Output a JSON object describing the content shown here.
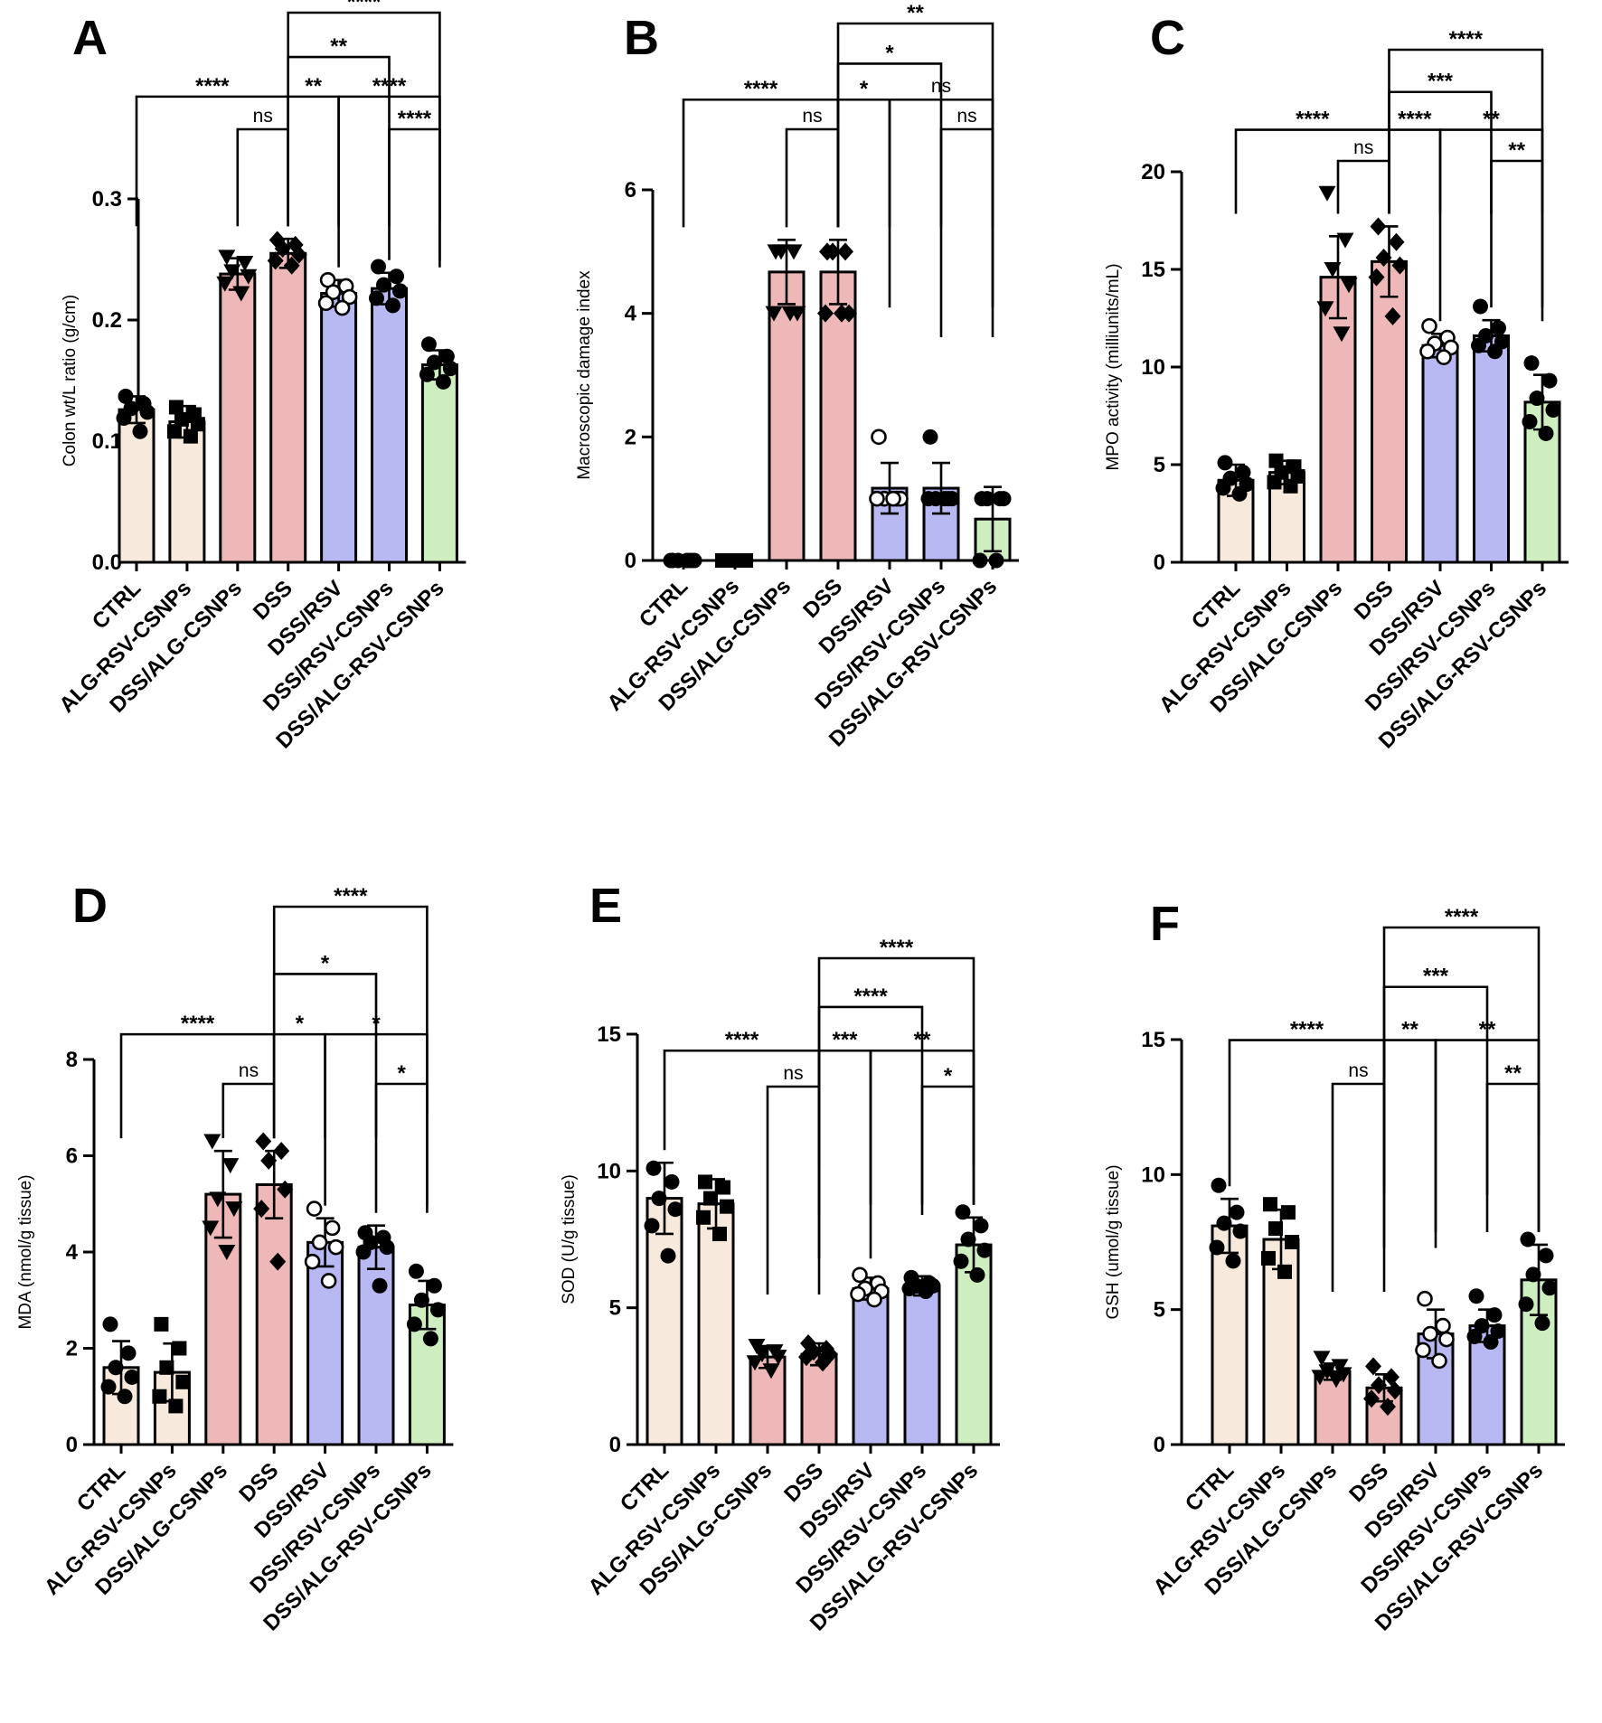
{
  "figure": {
    "layout": "2x3 grid of bar charts"
  },
  "colors": {
    "control": "#f7eadc",
    "dss": "#eeb8b8",
    "rsv": "#b8b8f2",
    "treatment": "#ceeec0",
    "stroke": "#000000"
  },
  "chart_data": [
    {
      "panel": "A",
      "type": "bar",
      "categories": [
        "CTRL",
        "ALG-RSV-CSNPs",
        "DSS/ALG-CSNPs",
        "DSS",
        "DSS/RSV",
        "DSS/RSV-CSNPs",
        "DSS/ALG-RSV-CSNPs"
      ],
      "values": [
        0.126,
        0.116,
        0.238,
        0.255,
        0.222,
        0.226,
        0.163
      ],
      "errors": [
        0.011,
        0.013,
        0.013,
        0.012,
        0.011,
        0.013,
        0.012
      ],
      "points": [
        [
          0.137,
          0.131,
          0.127,
          0.124,
          0.119,
          0.108
        ],
        [
          0.128,
          0.122,
          0.118,
          0.114,
          0.108,
          0.104
        ],
        [
          0.252,
          0.247,
          0.24,
          0.236,
          0.23,
          0.222
        ],
        [
          0.266,
          0.262,
          0.259,
          0.254,
          0.249,
          0.245
        ],
        [
          0.233,
          0.228,
          0.223,
          0.219,
          0.214,
          0.21
        ],
        [
          0.244,
          0.236,
          0.229,
          0.224,
          0.218,
          0.212
        ],
        [
          0.18,
          0.17,
          0.165,
          0.16,
          0.155,
          0.149
        ]
      ],
      "markers": [
        "circle",
        "square",
        "triangle-down",
        "diamond",
        "circle-open",
        "circle",
        "circle"
      ],
      "ylabel": "Colon wt/L ratio (g/cm)",
      "ylim": [
        0,
        0.3
      ],
      "yticks": [
        0,
        0.1,
        0.2,
        0.3
      ],
      "ytick_labels": [
        "0.0",
        "0.1",
        "0.2",
        "0.3"
      ],
      "comparisons": [
        {
          "from": 0,
          "to": 3,
          "label": "****"
        },
        {
          "from": 2,
          "to": 3,
          "label": "ns"
        },
        {
          "from": 3,
          "to": 4,
          "label": "**"
        },
        {
          "from": 3,
          "to": 5,
          "label": "**"
        },
        {
          "from": 3,
          "to": 6,
          "label": "****"
        },
        {
          "from": 4,
          "to": 6,
          "label": "****"
        },
        {
          "from": 5,
          "to": 6,
          "label": "****"
        }
      ]
    },
    {
      "panel": "B",
      "type": "bar",
      "categories": [
        "CTRL",
        "ALG-RSV-CSNPs",
        "DSS/ALG-CSNPs",
        "DSS",
        "DSS/RSV",
        "DSS/RSV-CSNPs",
        "DSS/ALG-RSV-CSNPs"
      ],
      "values": [
        0,
        0,
        4.67,
        4.67,
        1.17,
        1.17,
        0.67
      ],
      "errors": [
        0,
        0,
        0.52,
        0.52,
        0.41,
        0.41,
        0.52
      ],
      "points": [
        [
          0,
          0,
          0,
          0,
          0,
          0
        ],
        [
          0,
          0,
          0,
          0,
          0,
          0
        ],
        [
          5,
          5,
          5,
          4,
          4,
          4
        ],
        [
          5,
          5,
          5,
          4,
          4,
          4
        ],
        [
          2,
          1,
          1,
          1,
          1,
          1
        ],
        [
          2,
          1,
          1,
          1,
          1,
          1
        ],
        [
          1,
          1,
          1,
          1,
          0,
          0
        ]
      ],
      "markers": [
        "circle",
        "square",
        "triangle-down",
        "diamond",
        "circle-open",
        "circle",
        "circle"
      ],
      "ylabel": "Macroscopic damage index",
      "ylim": [
        0,
        6
      ],
      "yticks": [
        0,
        2,
        4,
        6
      ],
      "ytick_labels": [
        "0",
        "2",
        "4",
        "6"
      ],
      "comparisons": [
        {
          "from": 0,
          "to": 3,
          "label": "****"
        },
        {
          "from": 2,
          "to": 3,
          "label": "ns"
        },
        {
          "from": 3,
          "to": 4,
          "label": "*"
        },
        {
          "from": 3,
          "to": 5,
          "label": "*"
        },
        {
          "from": 3,
          "to": 6,
          "label": "**"
        },
        {
          "from": 4,
          "to": 6,
          "label": "ns"
        },
        {
          "from": 5,
          "to": 6,
          "label": "ns"
        }
      ]
    },
    {
      "panel": "C",
      "type": "bar",
      "categories": [
        "CTRL",
        "ALG-RSV-CSNPs",
        "DSS/ALG-CSNPs",
        "DSS",
        "DSS/RSV",
        "DSS/RSV-CSNPs",
        "DSS/ALG-RSV-CSNPs"
      ],
      "values": [
        4.2,
        4.6,
        14.6,
        15.4,
        11.1,
        11.6,
        8.2
      ],
      "errors": [
        0.8,
        0.6,
        2.1,
        1.8,
        0.6,
        0.8,
        1.4
      ],
      "points": [
        [
          5.1,
          4.6,
          4.3,
          4.0,
          3.8,
          3.5
        ],
        [
          5.2,
          4.9,
          4.6,
          4.4,
          4.1,
          3.9
        ],
        [
          18.9,
          16.5,
          15.0,
          14.2,
          13.0,
          11.7
        ],
        [
          17.2,
          16.4,
          15.6,
          15.2,
          14.6,
          12.6
        ],
        [
          12.1,
          11.5,
          11.2,
          11.0,
          10.8,
          10.5
        ],
        [
          13.1,
          12.0,
          11.6,
          11.3,
          11.1,
          10.8
        ],
        [
          10.2,
          9.3,
          8.4,
          7.8,
          7.2,
          6.6
        ]
      ],
      "markers": [
        "circle",
        "square",
        "triangle-down",
        "diamond",
        "circle-open",
        "circle",
        "circle"
      ],
      "ylabel": "MPO activity (milliunits/mL)",
      "ylim": [
        0,
        20
      ],
      "yticks": [
        0,
        5,
        10,
        15,
        20
      ],
      "ytick_labels": [
        "0",
        "5",
        "10",
        "15",
        "20"
      ],
      "comparisons": [
        {
          "from": 0,
          "to": 3,
          "label": "****"
        },
        {
          "from": 2,
          "to": 3,
          "label": "ns"
        },
        {
          "from": 3,
          "to": 4,
          "label": "****"
        },
        {
          "from": 3,
          "to": 5,
          "label": "***"
        },
        {
          "from": 3,
          "to": 6,
          "label": "****"
        },
        {
          "from": 4,
          "to": 6,
          "label": "**"
        },
        {
          "from": 5,
          "to": 6,
          "label": "**"
        }
      ]
    },
    {
      "panel": "D",
      "type": "bar",
      "categories": [
        "CTRL",
        "ALG-RSV-CSNPs",
        "DSS/ALG-CSNPs",
        "DSS",
        "DSS/RSV",
        "DSS/RSV-CSNPs",
        "DSS/ALG-RSV-CSNPs"
      ],
      "values": [
        1.6,
        1.5,
        5.2,
        5.4,
        4.2,
        4.1,
        2.9
      ],
      "errors": [
        0.55,
        0.6,
        0.9,
        0.7,
        0.5,
        0.45,
        0.5
      ],
      "points": [
        [
          2.5,
          1.9,
          1.6,
          1.4,
          1.2,
          1.0
        ],
        [
          2.5,
          2.0,
          1.6,
          1.3,
          1.0,
          0.8
        ],
        [
          6.3,
          5.8,
          5.1,
          4.9,
          4.5,
          4.0
        ],
        [
          6.3,
          6.1,
          5.9,
          5.3,
          4.9,
          3.8
        ],
        [
          4.9,
          4.5,
          4.2,
          4.1,
          3.8,
          3.4
        ],
        [
          4.4,
          4.3,
          4.2,
          4.1,
          4.0,
          3.3
        ],
        [
          3.6,
          3.3,
          3.0,
          2.8,
          2.5,
          2.2
        ]
      ],
      "markers": [
        "circle",
        "square",
        "triangle-down",
        "diamond",
        "circle-open",
        "circle",
        "circle"
      ],
      "ylabel": "MDA (nmol/g tissue)",
      "ylim": [
        0,
        8
      ],
      "yticks": [
        0,
        2,
        4,
        6,
        8
      ],
      "ytick_labels": [
        "0",
        "2",
        "4",
        "6",
        "8"
      ],
      "comparisons": [
        {
          "from": 0,
          "to": 3,
          "label": "****"
        },
        {
          "from": 2,
          "to": 3,
          "label": "ns"
        },
        {
          "from": 3,
          "to": 4,
          "label": "*"
        },
        {
          "from": 3,
          "to": 5,
          "label": "*"
        },
        {
          "from": 3,
          "to": 6,
          "label": "****"
        },
        {
          "from": 4,
          "to": 6,
          "label": "*"
        },
        {
          "from": 5,
          "to": 6,
          "label": "*"
        }
      ]
    },
    {
      "panel": "E",
      "type": "bar",
      "categories": [
        "CTRL",
        "ALG-RSV-CSNPs",
        "DSS/ALG-CSNPs",
        "DSS",
        "DSS/RSV",
        "DSS/RSV-CSNPs",
        "DSS/ALG-RSV-CSNPs"
      ],
      "values": [
        9.0,
        8.8,
        3.2,
        3.3,
        5.7,
        5.8,
        7.3
      ],
      "errors": [
        1.3,
        0.9,
        0.4,
        0.4,
        0.4,
        0.35,
        1.0
      ],
      "points": [
        [
          10.1,
          9.6,
          9.0,
          8.6,
          8.0,
          6.9
        ],
        [
          9.6,
          9.4,
          9.0,
          8.7,
          8.3,
          7.7
        ],
        [
          3.6,
          3.4,
          3.3,
          3.2,
          3.0,
          2.7
        ],
        [
          3.7,
          3.5,
          3.4,
          3.3,
          3.2,
          3.0
        ],
        [
          6.2,
          5.9,
          5.7,
          5.6,
          5.5,
          5.3
        ],
        [
          6.1,
          5.9,
          5.8,
          5.8,
          5.7,
          5.6
        ],
        [
          8.5,
          8.0,
          7.5,
          7.1,
          6.7,
          6.2
        ]
      ],
      "markers": [
        "circle",
        "square",
        "triangle-down",
        "diamond",
        "circle-open",
        "circle",
        "circle"
      ],
      "ylabel": "SOD (U/g tissue)",
      "ylim": [
        0,
        15
      ],
      "yticks": [
        0,
        5,
        10,
        15
      ],
      "ytick_labels": [
        "0",
        "5",
        "10",
        "15"
      ],
      "comparisons": [
        {
          "from": 0,
          "to": 3,
          "label": "****"
        },
        {
          "from": 2,
          "to": 3,
          "label": "ns"
        },
        {
          "from": 3,
          "to": 4,
          "label": "***"
        },
        {
          "from": 3,
          "to": 5,
          "label": "****"
        },
        {
          "from": 3,
          "to": 6,
          "label": "****"
        },
        {
          "from": 4,
          "to": 6,
          "label": "**"
        },
        {
          "from": 5,
          "to": 6,
          "label": "*"
        }
      ]
    },
    {
      "panel": "F",
      "type": "bar",
      "categories": [
        "CTRL",
        "ALG-RSV-CSNPs",
        "DSS/ALG-CSNPs",
        "DSS",
        "DSS/RSV",
        "DSS/RSV-CSNPs",
        "DSS/ALG-RSV-CSNPs"
      ],
      "values": [
        8.1,
        7.6,
        2.7,
        2.1,
        4.1,
        4.4,
        6.1
      ],
      "errors": [
        1.0,
        1.1,
        0.3,
        0.5,
        0.9,
        0.6,
        1.3
      ],
      "points": [
        [
          9.6,
          8.6,
          8.2,
          7.9,
          7.3,
          6.8
        ],
        [
          8.9,
          8.6,
          8.0,
          7.5,
          6.9,
          6.4
        ],
        [
          3.2,
          2.9,
          2.7,
          2.6,
          2.5,
          2.4
        ],
        [
          2.9,
          2.5,
          2.2,
          2.0,
          1.7,
          1.4
        ],
        [
          5.4,
          4.4,
          4.1,
          3.9,
          3.5,
          3.1
        ],
        [
          5.5,
          4.8,
          4.4,
          4.2,
          4.0,
          3.8
        ],
        [
          7.6,
          7.0,
          6.3,
          5.8,
          5.2,
          4.5
        ]
      ],
      "markers": [
        "circle",
        "square",
        "triangle-down",
        "diamond",
        "circle-open",
        "circle",
        "circle"
      ],
      "ylabel": "GSH (umol/g tissue)",
      "ylim": [
        0,
        15
      ],
      "yticks": [
        0,
        5,
        10,
        15
      ],
      "ytick_labels": [
        "0",
        "5",
        "10",
        "15"
      ],
      "comparisons": [
        {
          "from": 0,
          "to": 3,
          "label": "****"
        },
        {
          "from": 2,
          "to": 3,
          "label": "ns"
        },
        {
          "from": 3,
          "to": 4,
          "label": "**"
        },
        {
          "from": 3,
          "to": 5,
          "label": "***"
        },
        {
          "from": 3,
          "to": 6,
          "label": "****"
        },
        {
          "from": 4,
          "to": 6,
          "label": "**"
        },
        {
          "from": 5,
          "to": 6,
          "label": "**"
        }
      ]
    }
  ]
}
